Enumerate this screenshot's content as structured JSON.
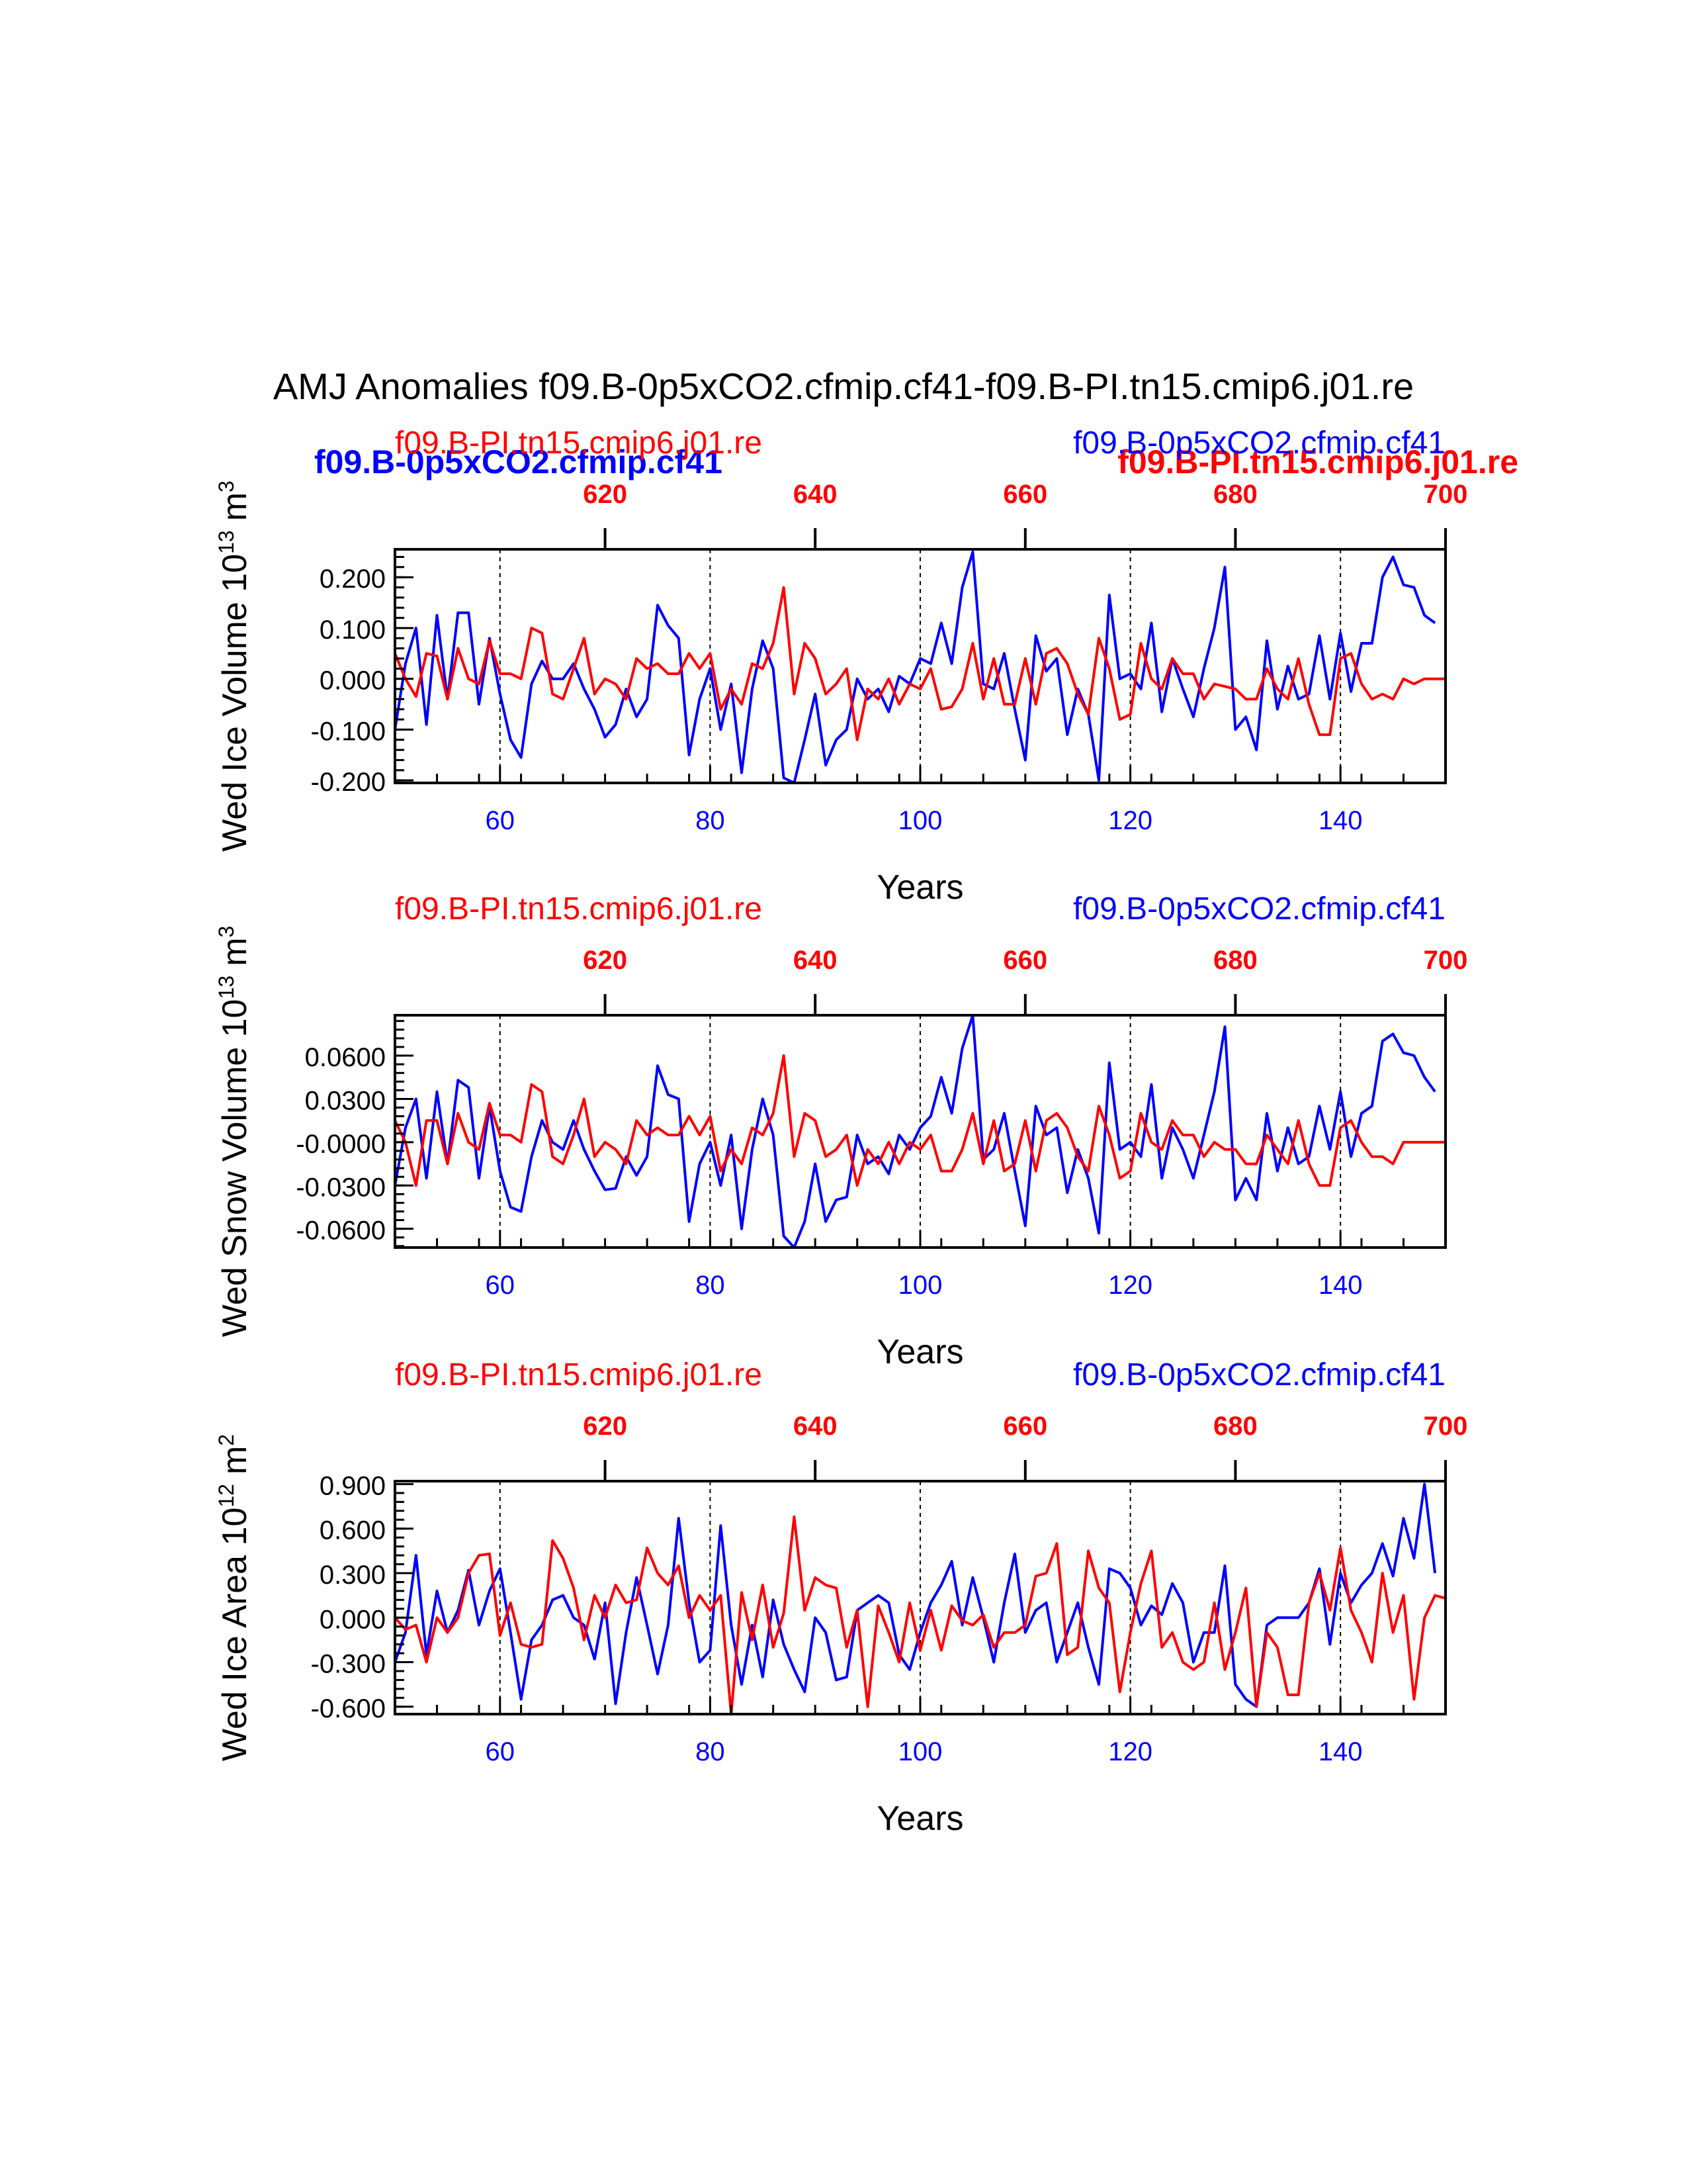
{
  "figure": {
    "title": "AMJ Anomalies f09.B-0p5xCO2.cfmip.cf41-f09.B-PI.tn15.cmip6.j01.re",
    "legend_top_left": "f09.B-0p5xCO2.cfmip.cf41",
    "legend_top_right": "f09.B-PI.tn15.cmip6.j01.re"
  },
  "colors": {
    "experiment": "#0000ff",
    "control": "#ff0000",
    "axis": "#000000"
  },
  "chart_data": [
    {
      "type": "line",
      "title": "",
      "xlabel": "Years",
      "ylabel": "Wed Ice Volume 10^13 m^3",
      "ylabel_base": "Wed Ice Volume 10",
      "ylabel_exp": "13",
      "ylabel_unit": "m",
      "ylabel_unit_exp": "3",
      "top_label_left": "f09.B-PI.tn15.cmip6.j01.re",
      "top_label_right": "f09.B-0p5xCO2.cfmip.cf41",
      "xlim": [
        50,
        150
      ],
      "xlim_top": [
        600,
        700
      ],
      "ylim": [
        -0.205,
        0.255
      ],
      "yticks": [
        -0.2,
        -0.1,
        0.0,
        0.1,
        0.2
      ],
      "ytick_labels": [
        "-0.200",
        "-0.100",
        "0.000",
        "0.100",
        "0.200"
      ],
      "xticks": [
        60,
        80,
        100,
        120,
        140
      ],
      "xticks_top": [
        620,
        640,
        660,
        680,
        700
      ],
      "grid_x": [
        60,
        80,
        100,
        120,
        140
      ],
      "series": [
        {
          "name": "f09.B-0p5xCO2.cfmip.cf41",
          "axis": "bottom",
          "x_start": 50,
          "values": [
            -0.1,
            0.03,
            0.1,
            -0.09,
            0.125,
            -0.04,
            0.13,
            0.13,
            -0.05,
            0.08,
            -0.03,
            -0.12,
            -0.155,
            -0.01,
            0.035,
            0.0,
            0.0,
            0.03,
            -0.02,
            -0.06,
            -0.115,
            -0.09,
            -0.02,
            -0.075,
            -0.04,
            0.145,
            0.105,
            0.08,
            -0.15,
            -0.04,
            0.02,
            -0.1,
            -0.01,
            -0.185,
            -0.02,
            0.075,
            0.02,
            -0.195,
            -0.205,
            -0.12,
            -0.03,
            -0.17,
            -0.12,
            -0.1,
            0.0,
            -0.04,
            -0.02,
            -0.065,
            0.005,
            -0.01,
            0.04,
            0.03,
            0.11,
            0.03,
            0.18,
            0.25,
            -0.01,
            -0.02,
            0.05,
            -0.06,
            -0.16,
            0.085,
            0.015,
            0.04,
            -0.11,
            -0.02,
            -0.07,
            -0.2,
            0.165,
            0.0,
            0.01,
            -0.02,
            0.11,
            -0.065,
            0.04,
            -0.02,
            -0.075,
            0.02,
            0.1,
            0.22,
            -0.1,
            -0.075,
            -0.14,
            0.075,
            -0.06,
            0.025,
            -0.04,
            -0.03,
            0.085,
            -0.04,
            0.09,
            -0.025,
            0.07,
            0.07,
            0.2,
            0.24,
            0.185,
            0.18,
            0.125,
            0.11
          ]
        },
        {
          "name": "f09.B-PI.tn15.cmip6.j01.re",
          "axis": "top",
          "x_start": 600,
          "values": [
            0.05,
            0.0,
            -0.035,
            0.05,
            0.045,
            -0.04,
            0.06,
            0.0,
            -0.01,
            0.075,
            0.01,
            0.01,
            0.0,
            0.1,
            0.09,
            -0.03,
            -0.04,
            0.02,
            0.08,
            -0.03,
            0.0,
            -0.01,
            -0.04,
            0.04,
            0.02,
            0.03,
            0.01,
            0.01,
            0.05,
            0.02,
            0.05,
            -0.06,
            -0.02,
            -0.05,
            0.03,
            0.02,
            0.07,
            0.18,
            -0.03,
            0.07,
            0.04,
            -0.03,
            -0.01,
            0.02,
            -0.12,
            -0.02,
            -0.04,
            0.0,
            -0.05,
            -0.01,
            -0.02,
            0.02,
            -0.06,
            -0.055,
            -0.02,
            0.07,
            -0.04,
            0.04,
            -0.05,
            -0.05,
            0.04,
            -0.05,
            0.05,
            0.06,
            0.03,
            -0.03,
            -0.07,
            0.08,
            0.02,
            -0.08,
            -0.07,
            0.07,
            0.0,
            -0.02,
            0.04,
            0.01,
            0.01,
            -0.04,
            -0.01,
            -0.015,
            -0.02,
            -0.04,
            -0.04,
            0.02,
            -0.02,
            -0.04,
            0.04,
            -0.05,
            -0.11,
            -0.11,
            0.04,
            0.05,
            -0.01,
            -0.04,
            -0.03,
            -0.04,
            0.0,
            -0.01,
            0.0,
            0.0,
            0.0
          ]
        }
      ]
    },
    {
      "type": "line",
      "title": "",
      "xlabel": "Years",
      "ylabel": "Wed Snow Volume 10^13 m^3",
      "ylabel_base": "Wed Snow Volume 10",
      "ylabel_exp": "13",
      "ylabel_unit": "m",
      "ylabel_unit_exp": "3",
      "top_label_left": "f09.B-PI.tn15.cmip6.j01.re",
      "top_label_right": "f09.B-0p5xCO2.cfmip.cf41",
      "xlim": [
        50,
        150
      ],
      "xlim_top": [
        600,
        700
      ],
      "ylim": [
        -0.073,
        0.088
      ],
      "yticks": [
        -0.06,
        -0.03,
        0.0,
        0.03,
        0.06
      ],
      "ytick_labels": [
        "-0.0600",
        "-0.0300",
        "-0.0000",
        "0.0300",
        "0.0600"
      ],
      "xticks": [
        60,
        80,
        100,
        120,
        140
      ],
      "xticks_top": [
        620,
        640,
        660,
        680,
        700
      ],
      "grid_x": [
        60,
        80,
        100,
        120,
        140
      ],
      "series": [
        {
          "name": "f09.B-0p5xCO2.cfmip.cf41",
          "axis": "bottom",
          "x_start": 50,
          "values": [
            -0.03,
            0.01,
            0.03,
            -0.025,
            0.035,
            -0.015,
            0.043,
            0.038,
            -0.025,
            0.025,
            -0.02,
            -0.045,
            -0.048,
            -0.01,
            0.015,
            0.0,
            -0.005,
            0.015,
            -0.005,
            -0.02,
            -0.033,
            -0.032,
            -0.01,
            -0.023,
            -0.01,
            0.053,
            0.033,
            0.03,
            -0.055,
            -0.015,
            0.0,
            -0.03,
            0.005,
            -0.06,
            -0.005,
            0.03,
            0.005,
            -0.065,
            -0.073,
            -0.055,
            -0.015,
            -0.055,
            -0.04,
            -0.038,
            0.005,
            -0.015,
            -0.01,
            -0.022,
            0.005,
            -0.005,
            0.01,
            0.018,
            0.045,
            0.02,
            0.065,
            0.088,
            -0.012,
            -0.005,
            0.02,
            -0.02,
            -0.058,
            0.025,
            0.005,
            0.01,
            -0.035,
            -0.005,
            -0.025,
            -0.063,
            0.055,
            -0.005,
            0.0,
            -0.01,
            0.04,
            -0.025,
            0.01,
            -0.005,
            -0.025,
            0.005,
            0.035,
            0.08,
            -0.04,
            -0.025,
            -0.04,
            0.02,
            -0.02,
            0.01,
            -0.015,
            -0.01,
            0.025,
            -0.005,
            0.035,
            -0.01,
            0.02,
            0.025,
            0.07,
            0.075,
            0.062,
            0.06,
            0.045,
            0.035
          ]
        },
        {
          "name": "f09.B-PI.tn15.cmip6.j01.re",
          "axis": "top",
          "x_start": 600,
          "values": [
            0.015,
            0.0,
            -0.03,
            0.015,
            0.015,
            -0.015,
            0.02,
            0.0,
            -0.005,
            0.027,
            0.005,
            0.005,
            0.0,
            0.04,
            0.035,
            -0.01,
            -0.015,
            0.005,
            0.03,
            -0.01,
            0.0,
            -0.005,
            -0.015,
            0.015,
            0.005,
            0.01,
            0.005,
            0.005,
            0.018,
            0.005,
            0.018,
            -0.02,
            -0.005,
            -0.015,
            0.01,
            0.005,
            0.02,
            0.06,
            -0.01,
            0.02,
            0.015,
            -0.01,
            -0.005,
            0.005,
            -0.03,
            -0.005,
            -0.015,
            0.0,
            -0.015,
            0.0,
            -0.005,
            0.005,
            -0.02,
            -0.02,
            -0.005,
            0.02,
            -0.015,
            0.015,
            -0.02,
            -0.015,
            0.015,
            -0.02,
            0.015,
            0.02,
            0.01,
            -0.01,
            -0.02,
            0.025,
            0.005,
            -0.025,
            -0.02,
            0.02,
            0.0,
            -0.005,
            0.015,
            0.005,
            0.005,
            -0.01,
            0.0,
            -0.005,
            -0.005,
            -0.015,
            -0.015,
            0.005,
            -0.005,
            -0.015,
            0.015,
            -0.015,
            -0.03,
            -0.03,
            0.01,
            0.015,
            0.0,
            -0.01,
            -0.01,
            -0.015,
            0.0,
            0.0,
            0.0,
            0.0,
            0.0
          ]
        }
      ]
    },
    {
      "type": "line",
      "title": "",
      "xlabel": "Years",
      "ylabel": "Wed Ice Area 10^12 m^2",
      "ylabel_base": "Wed Ice Area 10",
      "ylabel_exp": "12",
      "ylabel_unit": "m",
      "ylabel_unit_exp": "2",
      "top_label_left": "f09.B-PI.tn15.cmip6.j01.re",
      "top_label_right": "f09.B-0p5xCO2.cfmip.cf41",
      "xlim": [
        50,
        150
      ],
      "xlim_top": [
        600,
        700
      ],
      "ylim": [
        -0.65,
        0.92
      ],
      "yticks": [
        -0.6,
        -0.3,
        0.0,
        0.3,
        0.6,
        0.9
      ],
      "ytick_labels": [
        "-0.600",
        "-0.300",
        "0.000",
        "0.300",
        "0.600",
        "0.900"
      ],
      "xticks": [
        60,
        80,
        100,
        120,
        140
      ],
      "xticks_top": [
        620,
        640,
        660,
        680,
        700
      ],
      "grid_x": [
        60,
        80,
        100,
        120,
        140
      ],
      "series": [
        {
          "name": "f09.B-0p5xCO2.cfmip.cf41",
          "axis": "bottom",
          "x_start": 50,
          "values": [
            -0.3,
            -0.1,
            0.42,
            -0.25,
            0.18,
            -0.1,
            0.05,
            0.32,
            -0.05,
            0.18,
            0.33,
            -0.1,
            -0.55,
            -0.15,
            -0.05,
            0.12,
            0.15,
            0.0,
            -0.05,
            -0.28,
            0.1,
            -0.58,
            -0.1,
            0.27,
            -0.05,
            -0.38,
            -0.05,
            0.67,
            0.1,
            -0.3,
            -0.22,
            0.62,
            -0.05,
            -0.45,
            -0.05,
            -0.4,
            0.12,
            -0.18,
            -0.35,
            -0.5,
            0.0,
            -0.1,
            -0.42,
            -0.4,
            0.05,
            0.1,
            0.15,
            0.1,
            -0.25,
            -0.35,
            -0.1,
            0.1,
            0.22,
            0.38,
            -0.05,
            0.27,
            0.0,
            -0.3,
            0.1,
            0.43,
            -0.1,
            0.05,
            0.1,
            -0.3,
            -0.1,
            0.1,
            -0.2,
            -0.45,
            0.33,
            0.3,
            0.2,
            -0.05,
            0.08,
            0.02,
            0.23,
            0.1,
            -0.3,
            -0.1,
            -0.1,
            0.35,
            -0.45,
            -0.55,
            -0.6,
            -0.05,
            0.0,
            0.0,
            0.0,
            0.1,
            0.33,
            -0.18,
            0.3,
            0.1,
            0.22,
            0.3,
            0.5,
            0.28,
            0.67,
            0.4,
            0.9,
            0.3
          ]
        },
        {
          "name": "f09.B-PI.tn15.cmip6.j01.re",
          "axis": "top",
          "x_start": 600,
          "values": [
            0.0,
            -0.08,
            -0.05,
            -0.3,
            0.0,
            -0.1,
            0.0,
            0.3,
            0.42,
            0.43,
            -0.12,
            0.1,
            -0.18,
            -0.2,
            -0.18,
            0.52,
            0.4,
            0.2,
            -0.15,
            0.15,
            0.0,
            0.22,
            0.1,
            0.12,
            0.47,
            0.3,
            0.22,
            0.35,
            0.0,
            0.15,
            0.05,
            0.15,
            -0.65,
            0.17,
            -0.15,
            0.22,
            -0.2,
            0.03,
            0.68,
            0.05,
            0.27,
            0.22,
            0.2,
            -0.2,
            0.05,
            -0.6,
            0.08,
            -0.1,
            -0.3,
            0.1,
            -0.22,
            0.05,
            -0.22,
            0.08,
            -0.02,
            -0.05,
            0.02,
            -0.2,
            -0.1,
            -0.1,
            -0.05,
            0.28,
            0.3,
            0.5,
            -0.25,
            -0.2,
            0.45,
            0.2,
            0.1,
            -0.5,
            -0.1,
            0.23,
            0.45,
            -0.2,
            -0.1,
            -0.3,
            -0.35,
            -0.3,
            0.1,
            -0.35,
            -0.1,
            0.2,
            -0.6,
            -0.1,
            -0.2,
            -0.52,
            -0.52,
            0.1,
            0.3,
            0.05,
            0.47,
            0.05,
            -0.1,
            -0.3,
            0.3,
            -0.1,
            0.15,
            -0.55,
            0.0,
            0.15,
            0.13
          ]
        }
      ]
    }
  ]
}
